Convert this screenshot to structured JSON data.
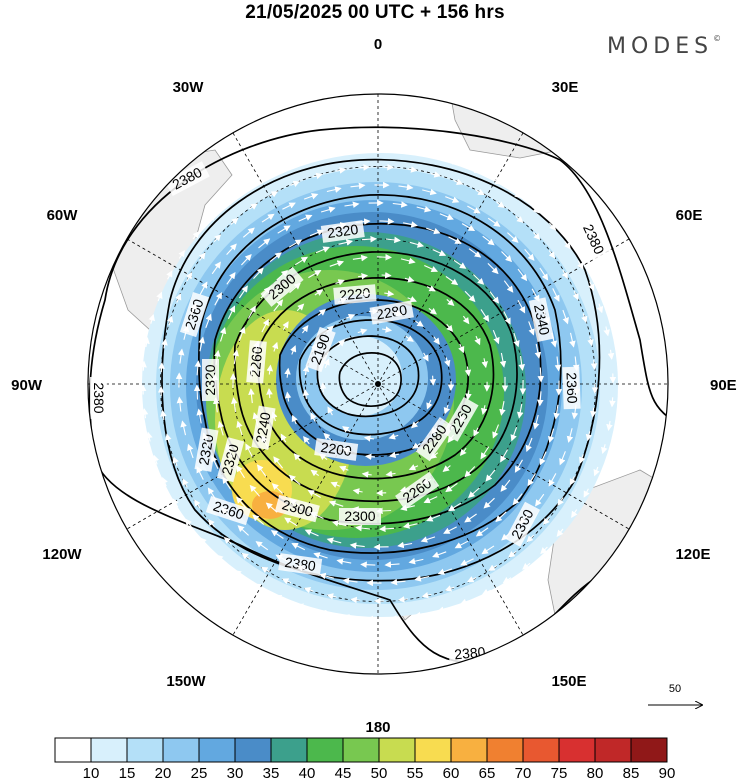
{
  "header": {
    "title": "21/05/2025  00 UTC  + 156 hrs",
    "brand": "MODES",
    "brand_mark": "©"
  },
  "longitude_labels": [
    {
      "text": "0",
      "lon": 0
    },
    {
      "text": "30E",
      "lon": 30
    },
    {
      "text": "60E",
      "lon": 60
    },
    {
      "text": "90E",
      "lon": 90
    },
    {
      "text": "120E",
      "lon": 120
    },
    {
      "text": "150E",
      "lon": 150
    },
    {
      "text": "180",
      "lon": 180
    },
    {
      "text": "150W",
      "lon": -150
    },
    {
      "text": "120W",
      "lon": -120
    },
    {
      "text": "90W",
      "lon": -90
    },
    {
      "text": "60W",
      "lon": -60
    },
    {
      "text": "30W",
      "lon": -30
    }
  ],
  "contour_labels": [
    "2380",
    "2380",
    "2380",
    "2380",
    "2380",
    "2380",
    "2360",
    "2360",
    "2360",
    "2360",
    "2340",
    "2320",
    "2320",
    "2320",
    "2320",
    "2300",
    "2300",
    "2300",
    "2280",
    "2260",
    "2260",
    "2260",
    "2240",
    "2220",
    "2200",
    "2190",
    "2280"
  ],
  "reference_vector": {
    "label": "50"
  },
  "colorbar": {
    "levels": [
      "10",
      "15",
      "20",
      "25",
      "30",
      "35",
      "40",
      "45",
      "50",
      "55",
      "60",
      "65",
      "70",
      "75",
      "80",
      "85",
      "90"
    ],
    "colors": [
      "#ffffff",
      "#d8f0fc",
      "#b4e0f8",
      "#8ec8f0",
      "#62a8e0",
      "#4a8cc8",
      "#3ca08c",
      "#4cb84c",
      "#78c850",
      "#c8dc50",
      "#f8dc50",
      "#f8b040",
      "#f08030",
      "#e85830",
      "#d83030",
      "#c02828",
      "#901818"
    ]
  }
}
